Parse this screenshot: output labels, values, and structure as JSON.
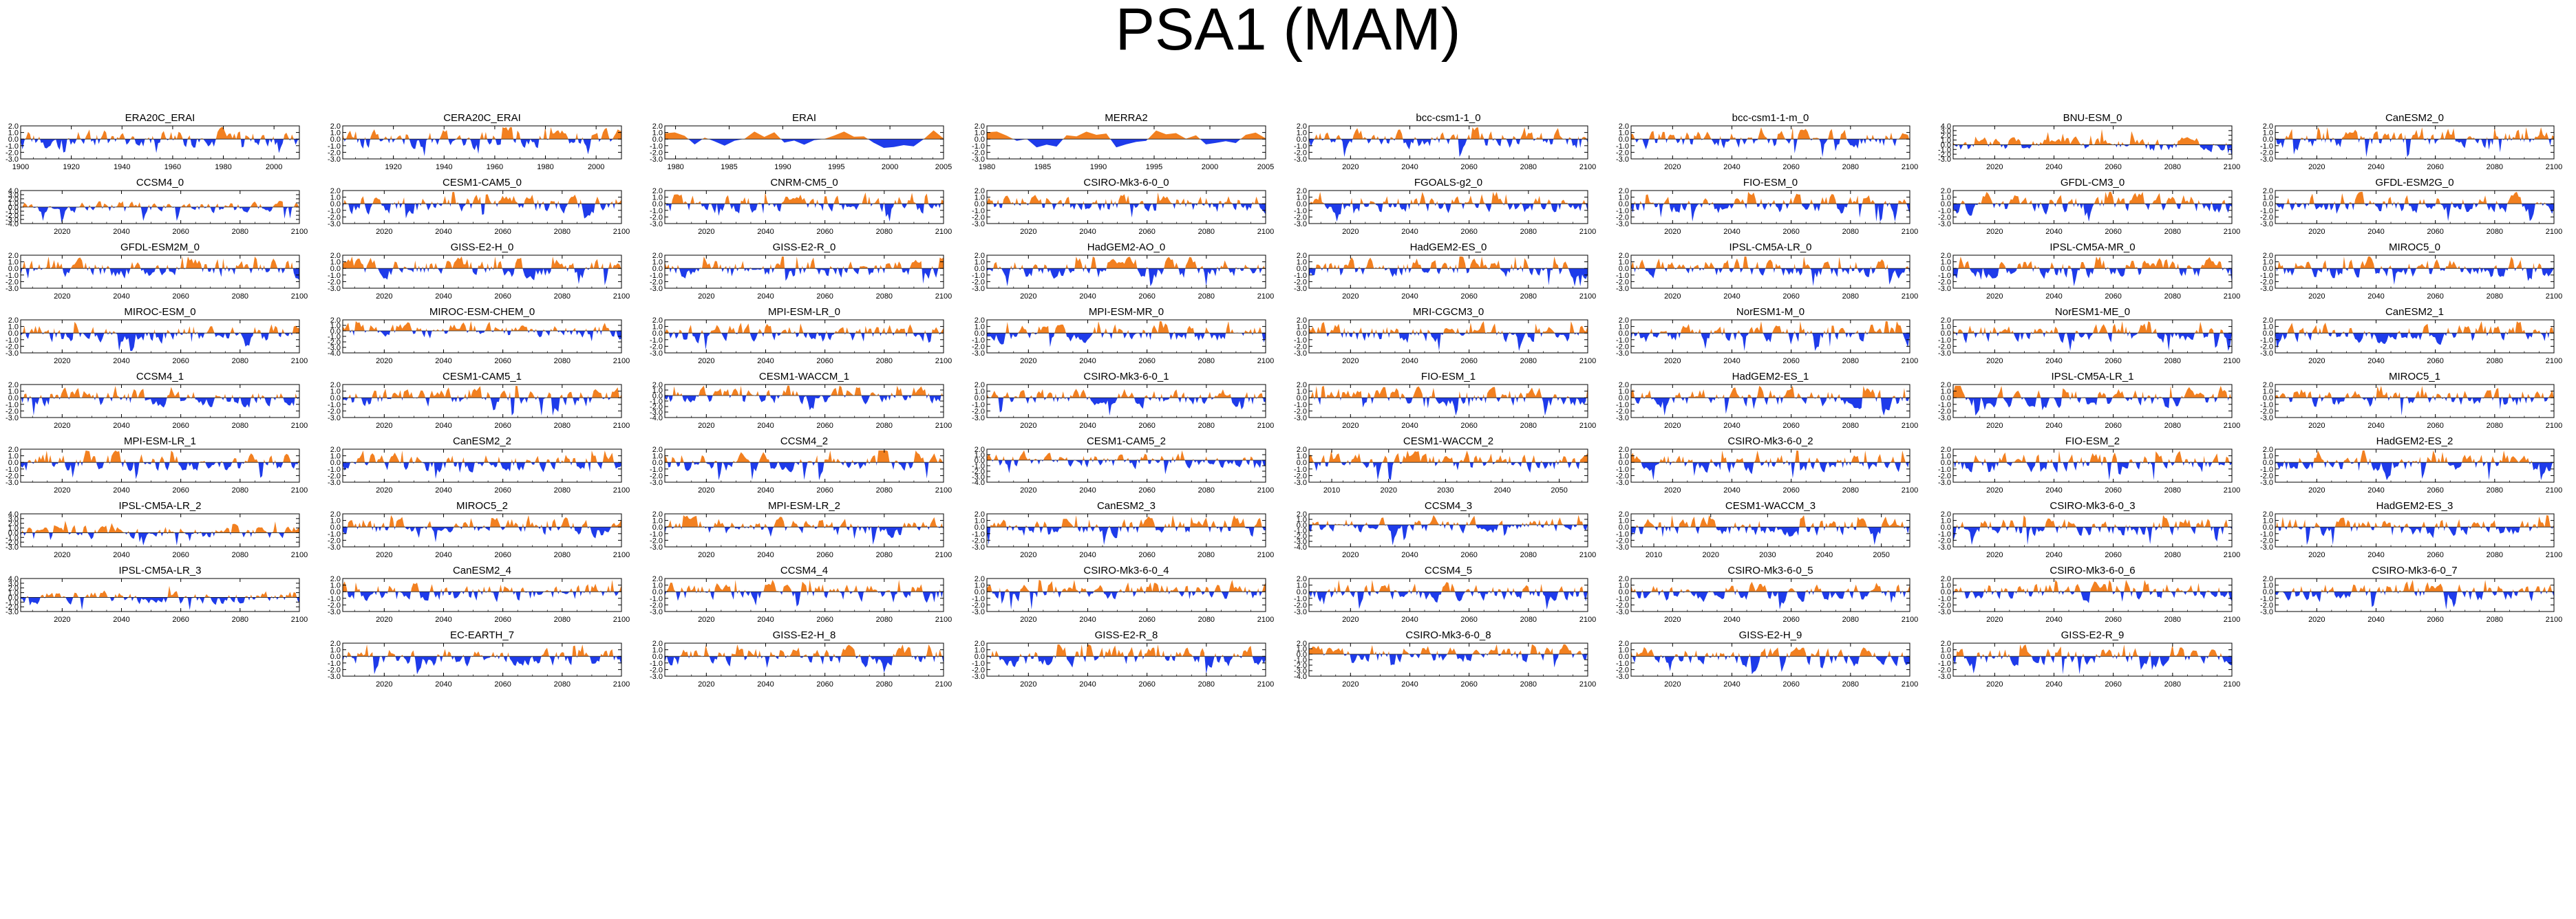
{
  "title": "PSA1 (MAM)",
  "colors": {
    "positive": "#f28020",
    "negative": "#1e3bea",
    "axis": "#000000"
  },
  "chart_data": {
    "type": "area",
    "title": "PSA1 (MAM)",
    "grid": false,
    "default_ylim": [
      -3.0,
      3.0
    ],
    "default_yticks": [
      "2.0",
      "1.0",
      "0.0",
      "-1.0",
      "-2.0",
      "-3.0"
    ],
    "hist_xticks": [
      "1900",
      "1920",
      "1940",
      "1960",
      "1980",
      "2000"
    ],
    "fut_xticks": [
      "2020",
      "2040",
      "2060",
      "2080",
      "2100"
    ],
    "panels": [
      {
        "name": "ERA20C_ERAI",
        "x_range": [
          1900,
          2010
        ],
        "xticks": [
          "1900",
          "1920",
          "1940",
          "1960",
          "1980",
          "2000"
        ]
      },
      {
        "name": "CERA20C_ERAI",
        "x_range": [
          1900,
          2010
        ],
        "xticks": [
          "1920",
          "1940",
          "1960",
          "1980",
          "2000"
        ]
      },
      {
        "name": "ERAI",
        "x_range": [
          1979,
          2005
        ],
        "xticks": [
          "1980",
          "1985",
          "1990",
          "1995",
          "2000",
          "2005"
        ]
      },
      {
        "name": "MERRA2",
        "x_range": [
          1980,
          2005
        ],
        "xticks": [
          "1980",
          "1985",
          "1990",
          "1995",
          "2000",
          "2005"
        ]
      },
      {
        "name": "bcc-csm1-1_0",
        "x_range": [
          2006,
          2100
        ],
        "xticks": [
          "2020",
          "2040",
          "2060",
          "2080",
          "2100"
        ]
      },
      {
        "name": "bcc-csm1-1-m_0",
        "x_range": [
          2006,
          2100
        ],
        "xticks": [
          "2020",
          "2040",
          "2060",
          "2080",
          "2100"
        ]
      },
      {
        "name": "BNU-ESM_0",
        "x_range": [
          2006,
          2100
        ],
        "xticks": [
          "2020",
          "2040",
          "2060",
          "2080",
          "2100"
        ],
        "yticks": [
          "4.0",
          "3.0",
          "2.0",
          "1.0",
          "0.0",
          "-1.0",
          "-2.0",
          "-3.0"
        ]
      },
      {
        "name": "CanESM2_0",
        "x_range": [
          2006,
          2100
        ],
        "xticks": [
          "2020",
          "2040",
          "2060",
          "2080",
          "2100"
        ]
      },
      {
        "name": "CCSM4_0",
        "x_range": [
          2006,
          2100
        ],
        "xticks": [
          "2020",
          "2040",
          "2060",
          "2080",
          "2100"
        ],
        "yticks": [
          "4.0",
          "3.0",
          "2.0",
          "1.0",
          "0.0",
          "-1.0",
          "-2.0",
          "-3.0",
          "-4.0"
        ]
      },
      {
        "name": "CESM1-CAM5_0",
        "x_range": [
          2006,
          2100
        ],
        "xticks": [
          "2020",
          "2040",
          "2060",
          "2080",
          "2100"
        ]
      },
      {
        "name": "CNRM-CM5_0",
        "x_range": [
          2006,
          2100
        ],
        "xticks": [
          "2020",
          "2040",
          "2060",
          "2080",
          "2100"
        ]
      },
      {
        "name": "CSIRO-Mk3-6-0_0",
        "x_range": [
          2006,
          2100
        ],
        "xticks": [
          "2020",
          "2040",
          "2060",
          "2080",
          "2100"
        ]
      },
      {
        "name": "FGOALS-g2_0",
        "x_range": [
          2006,
          2100
        ],
        "xticks": [
          "2020",
          "2040",
          "2060",
          "2080",
          "2100"
        ]
      },
      {
        "name": "FIO-ESM_0",
        "x_range": [
          2006,
          2100
        ],
        "xticks": [
          "2020",
          "2040",
          "2060",
          "2080",
          "2100"
        ]
      },
      {
        "name": "GFDL-CM3_0",
        "x_range": [
          2006,
          2100
        ],
        "xticks": [
          "2020",
          "2040",
          "2060",
          "2080",
          "2100"
        ]
      },
      {
        "name": "GFDL-ESM2G_0",
        "x_range": [
          2006,
          2100
        ],
        "xticks": [
          "2020",
          "2040",
          "2060",
          "2080",
          "2100"
        ]
      },
      {
        "name": "GFDL-ESM2M_0",
        "x_range": [
          2006,
          2100
        ],
        "xticks": [
          "2020",
          "2040",
          "2060",
          "2080",
          "2100"
        ]
      },
      {
        "name": "GISS-E2-H_0",
        "x_range": [
          2006,
          2100
        ],
        "xticks": [
          "2020",
          "2040",
          "2060",
          "2080",
          "2100"
        ]
      },
      {
        "name": "GISS-E2-R_0",
        "x_range": [
          2006,
          2100
        ],
        "xticks": [
          "2020",
          "2040",
          "2060",
          "2080",
          "2100"
        ]
      },
      {
        "name": "HadGEM2-AO_0",
        "x_range": [
          2006,
          2100
        ],
        "xticks": [
          "2020",
          "2040",
          "2060",
          "2080",
          "2100"
        ]
      },
      {
        "name": "HadGEM2-ES_0",
        "x_range": [
          2006,
          2100
        ],
        "xticks": [
          "2020",
          "2040",
          "2060",
          "2080",
          "2100"
        ]
      },
      {
        "name": "IPSL-CM5A-LR_0",
        "x_range": [
          2006,
          2100
        ],
        "xticks": [
          "2020",
          "2040",
          "2060",
          "2080",
          "2100"
        ]
      },
      {
        "name": "IPSL-CM5A-MR_0",
        "x_range": [
          2006,
          2100
        ],
        "xticks": [
          "2020",
          "2040",
          "2060",
          "2080",
          "2100"
        ]
      },
      {
        "name": "MIROC5_0",
        "x_range": [
          2006,
          2100
        ],
        "xticks": [
          "2020",
          "2040",
          "2060",
          "2080",
          "2100"
        ]
      },
      {
        "name": "MIROC-ESM_0",
        "x_range": [
          2006,
          2100
        ],
        "xticks": [
          "2020",
          "2040",
          "2060",
          "2080",
          "2100"
        ]
      },
      {
        "name": "MIROC-ESM-CHEM_0",
        "x_range": [
          2006,
          2100
        ],
        "xticks": [
          "2020",
          "2040",
          "2060",
          "2080",
          "2100"
        ],
        "yticks": [
          "2.0",
          "1.0",
          "0.0",
          "-1.0",
          "-2.0",
          "-3.0",
          "-4.0"
        ]
      },
      {
        "name": "MPI-ESM-LR_0",
        "x_range": [
          2006,
          2100
        ],
        "xticks": [
          "2020",
          "2040",
          "2060",
          "2080",
          "2100"
        ]
      },
      {
        "name": "MPI-ESM-MR_0",
        "x_range": [
          2006,
          2100
        ],
        "xticks": [
          "2020",
          "2040",
          "2060",
          "2080",
          "2100"
        ]
      },
      {
        "name": "MRI-CGCM3_0",
        "x_range": [
          2006,
          2100
        ],
        "xticks": [
          "2020",
          "2040",
          "2060",
          "2080",
          "2100"
        ]
      },
      {
        "name": "NorESM1-M_0",
        "x_range": [
          2006,
          2100
        ],
        "xticks": [
          "2020",
          "2040",
          "2060",
          "2080",
          "2100"
        ]
      },
      {
        "name": "NorESM1-ME_0",
        "x_range": [
          2006,
          2100
        ],
        "xticks": [
          "2020",
          "2040",
          "2060",
          "2080",
          "2100"
        ]
      },
      {
        "name": "CanESM2_1",
        "x_range": [
          2006,
          2100
        ],
        "xticks": [
          "2020",
          "2040",
          "2060",
          "2080",
          "2100"
        ]
      },
      {
        "name": "CCSM4_1",
        "x_range": [
          2006,
          2100
        ],
        "xticks": [
          "2020",
          "2040",
          "2060",
          "2080",
          "2100"
        ]
      },
      {
        "name": "CESM1-CAM5_1",
        "x_range": [
          2006,
          2100
        ],
        "xticks": [
          "2020",
          "2040",
          "2060",
          "2080",
          "2100"
        ]
      },
      {
        "name": "CESM1-WACCM_1",
        "x_range": [
          2006,
          2100
        ],
        "xticks": [
          "2020",
          "2040",
          "2060",
          "2080",
          "2100"
        ],
        "yticks": [
          "2.0",
          "1.0",
          "0.0",
          "-1.0",
          "-2.0",
          "-3.0",
          "-4.0"
        ]
      },
      {
        "name": "CSIRO-Mk3-6-0_1",
        "x_range": [
          2006,
          2100
        ],
        "xticks": [
          "2020",
          "2040",
          "2060",
          "2080",
          "2100"
        ]
      },
      {
        "name": "FIO-ESM_1",
        "x_range": [
          2006,
          2100
        ],
        "xticks": [
          "2020",
          "2040",
          "2060",
          "2080",
          "2100"
        ]
      },
      {
        "name": "HadGEM2-ES_1",
        "x_range": [
          2006,
          2100
        ],
        "xticks": [
          "2020",
          "2040",
          "2060",
          "2080",
          "2100"
        ]
      },
      {
        "name": "IPSL-CM5A-LR_1",
        "x_range": [
          2006,
          2100
        ],
        "xticks": [
          "2020",
          "2040",
          "2060",
          "2080",
          "2100"
        ]
      },
      {
        "name": "MIROC5_1",
        "x_range": [
          2006,
          2100
        ],
        "xticks": [
          "2020",
          "2040",
          "2060",
          "2080",
          "2100"
        ]
      },
      {
        "name": "MPI-ESM-LR_1",
        "x_range": [
          2006,
          2100
        ],
        "xticks": [
          "2020",
          "2040",
          "2060",
          "2080",
          "2100"
        ]
      },
      {
        "name": "CanESM2_2",
        "x_range": [
          2006,
          2100
        ],
        "xticks": [
          "2020",
          "2040",
          "2060",
          "2080",
          "2100"
        ]
      },
      {
        "name": "CCSM4_2",
        "x_range": [
          2006,
          2100
        ],
        "xticks": [
          "2020",
          "2040",
          "2060",
          "2080",
          "2100"
        ]
      },
      {
        "name": "CESM1-CAM5_2",
        "x_range": [
          2006,
          2100
        ],
        "xticks": [
          "2020",
          "2040",
          "2060",
          "2080",
          "2100"
        ],
        "yticks": [
          "2.0",
          "1.0",
          "0.0",
          "-1.0",
          "-2.0",
          "-3.0",
          "-4.0"
        ]
      },
      {
        "name": "CESM1-WACCM_2",
        "x_range": [
          2006,
          2055
        ],
        "xticks": [
          "2010",
          "2020",
          "2030",
          "2040",
          "2050"
        ]
      },
      {
        "name": "CSIRO-Mk3-6-0_2",
        "x_range": [
          2006,
          2100
        ],
        "xticks": [
          "2020",
          "2040",
          "2060",
          "2080",
          "2100"
        ]
      },
      {
        "name": "FIO-ESM_2",
        "x_range": [
          2006,
          2100
        ],
        "xticks": [
          "2020",
          "2040",
          "2060",
          "2080",
          "2100"
        ]
      },
      {
        "name": "HadGEM2-ES_2",
        "x_range": [
          2006,
          2100
        ],
        "xticks": [
          "2020",
          "2040",
          "2060",
          "2080",
          "2100"
        ]
      },
      {
        "name": "IPSL-CM5A-LR_2",
        "x_range": [
          2006,
          2100
        ],
        "xticks": [
          "2020",
          "2040",
          "2060",
          "2080",
          "2100"
        ],
        "yticks": [
          "4.0",
          "3.0",
          "2.0",
          "1.0",
          "0.0",
          "-1.0",
          "-2.0",
          "-3.0"
        ]
      },
      {
        "name": "MIROC5_2",
        "x_range": [
          2006,
          2100
        ],
        "xticks": [
          "2020",
          "2040",
          "2060",
          "2080",
          "2100"
        ]
      },
      {
        "name": "MPI-ESM-LR_2",
        "x_range": [
          2006,
          2100
        ],
        "xticks": [
          "2020",
          "2040",
          "2060",
          "2080",
          "2100"
        ]
      },
      {
        "name": "CanESM2_3",
        "x_range": [
          2006,
          2100
        ],
        "xticks": [
          "2020",
          "2040",
          "2060",
          "2080",
          "2100"
        ]
      },
      {
        "name": "CCSM4_3",
        "x_range": [
          2006,
          2100
        ],
        "xticks": [
          "2020",
          "2040",
          "2060",
          "2080",
          "2100"
        ],
        "yticks": [
          "2.0",
          "1.0",
          "0.0",
          "-1.0",
          "-2.0",
          "-3.0",
          "-4.0"
        ]
      },
      {
        "name": "CESM1-WACCM_3",
        "x_range": [
          2006,
          2055
        ],
        "xticks": [
          "2010",
          "2020",
          "2030",
          "2040",
          "2050"
        ]
      },
      {
        "name": "CSIRO-Mk3-6-0_3",
        "x_range": [
          2006,
          2100
        ],
        "xticks": [
          "2020",
          "2040",
          "2060",
          "2080",
          "2100"
        ]
      },
      {
        "name": "HadGEM2-ES_3",
        "x_range": [
          2006,
          2100
        ],
        "xticks": [
          "2020",
          "2040",
          "2060",
          "2080",
          "2100"
        ]
      },
      {
        "name": "IPSL-CM5A-LR_3",
        "x_range": [
          2006,
          2100
        ],
        "xticks": [
          "2020",
          "2040",
          "2060",
          "2080",
          "2100"
        ],
        "yticks": [
          "4.0",
          "3.0",
          "2.0",
          "1.0",
          "0.0",
          "-1.0",
          "-2.0",
          "-3.0"
        ]
      },
      {
        "name": "CanESM2_4",
        "x_range": [
          2006,
          2100
        ],
        "xticks": [
          "2020",
          "2040",
          "2060",
          "2080",
          "2100"
        ]
      },
      {
        "name": "CCSM4_4",
        "x_range": [
          2006,
          2100
        ],
        "xticks": [
          "2020",
          "2040",
          "2060",
          "2080",
          "2100"
        ]
      },
      {
        "name": "CSIRO-Mk3-6-0_4",
        "x_range": [
          2006,
          2100
        ],
        "xticks": [
          "2020",
          "2040",
          "2060",
          "2080",
          "2100"
        ]
      },
      {
        "name": "CCSM4_5",
        "x_range": [
          2006,
          2100
        ],
        "xticks": [
          "2020",
          "2040",
          "2060",
          "2080",
          "2100"
        ]
      },
      {
        "name": "CSIRO-Mk3-6-0_5",
        "x_range": [
          2006,
          2100
        ],
        "xticks": [
          "2020",
          "2040",
          "2060",
          "2080",
          "2100"
        ]
      },
      {
        "name": "CSIRO-Mk3-6-0_6",
        "x_range": [
          2006,
          2100
        ],
        "xticks": [
          "2020",
          "2040",
          "2060",
          "2080",
          "2100"
        ]
      },
      {
        "name": "CSIRO-Mk3-6-0_7",
        "x_range": [
          2006,
          2100
        ],
        "xticks": [
          "2020",
          "2040",
          "2060",
          "2080",
          "2100"
        ]
      },
      {
        "name": "EC-EARTH_7",
        "x_range": [
          2006,
          2100
        ],
        "xticks": [
          "2020",
          "2040",
          "2060",
          "2080",
          "2100"
        ],
        "col": 1
      },
      {
        "name": "GISS-E2-H_8",
        "x_range": [
          2006,
          2100
        ],
        "xticks": [
          "2020",
          "2040",
          "2060",
          "2080",
          "2100"
        ]
      },
      {
        "name": "GISS-E2-R_8",
        "x_range": [
          2006,
          2100
        ],
        "xticks": [
          "2020",
          "2040",
          "2060",
          "2080",
          "2100"
        ]
      },
      {
        "name": "CSIRO-Mk3-6-0_8",
        "x_range": [
          2006,
          2100
        ],
        "xticks": [
          "2020",
          "2040",
          "2060",
          "2080",
          "2100"
        ],
        "yticks": [
          "2.0",
          "1.0",
          "0.0",
          "-1.0",
          "-2.0",
          "-3.0",
          "-4.0"
        ]
      },
      {
        "name": "GISS-E2-H_9",
        "x_range": [
          2006,
          2100
        ],
        "xticks": [
          "2020",
          "2040",
          "2060",
          "2080",
          "2100"
        ]
      },
      {
        "name": "GISS-E2-R_9",
        "x_range": [
          2006,
          2100
        ],
        "xticks": [
          "2020",
          "2040",
          "2060",
          "2080",
          "2100"
        ]
      }
    ]
  }
}
